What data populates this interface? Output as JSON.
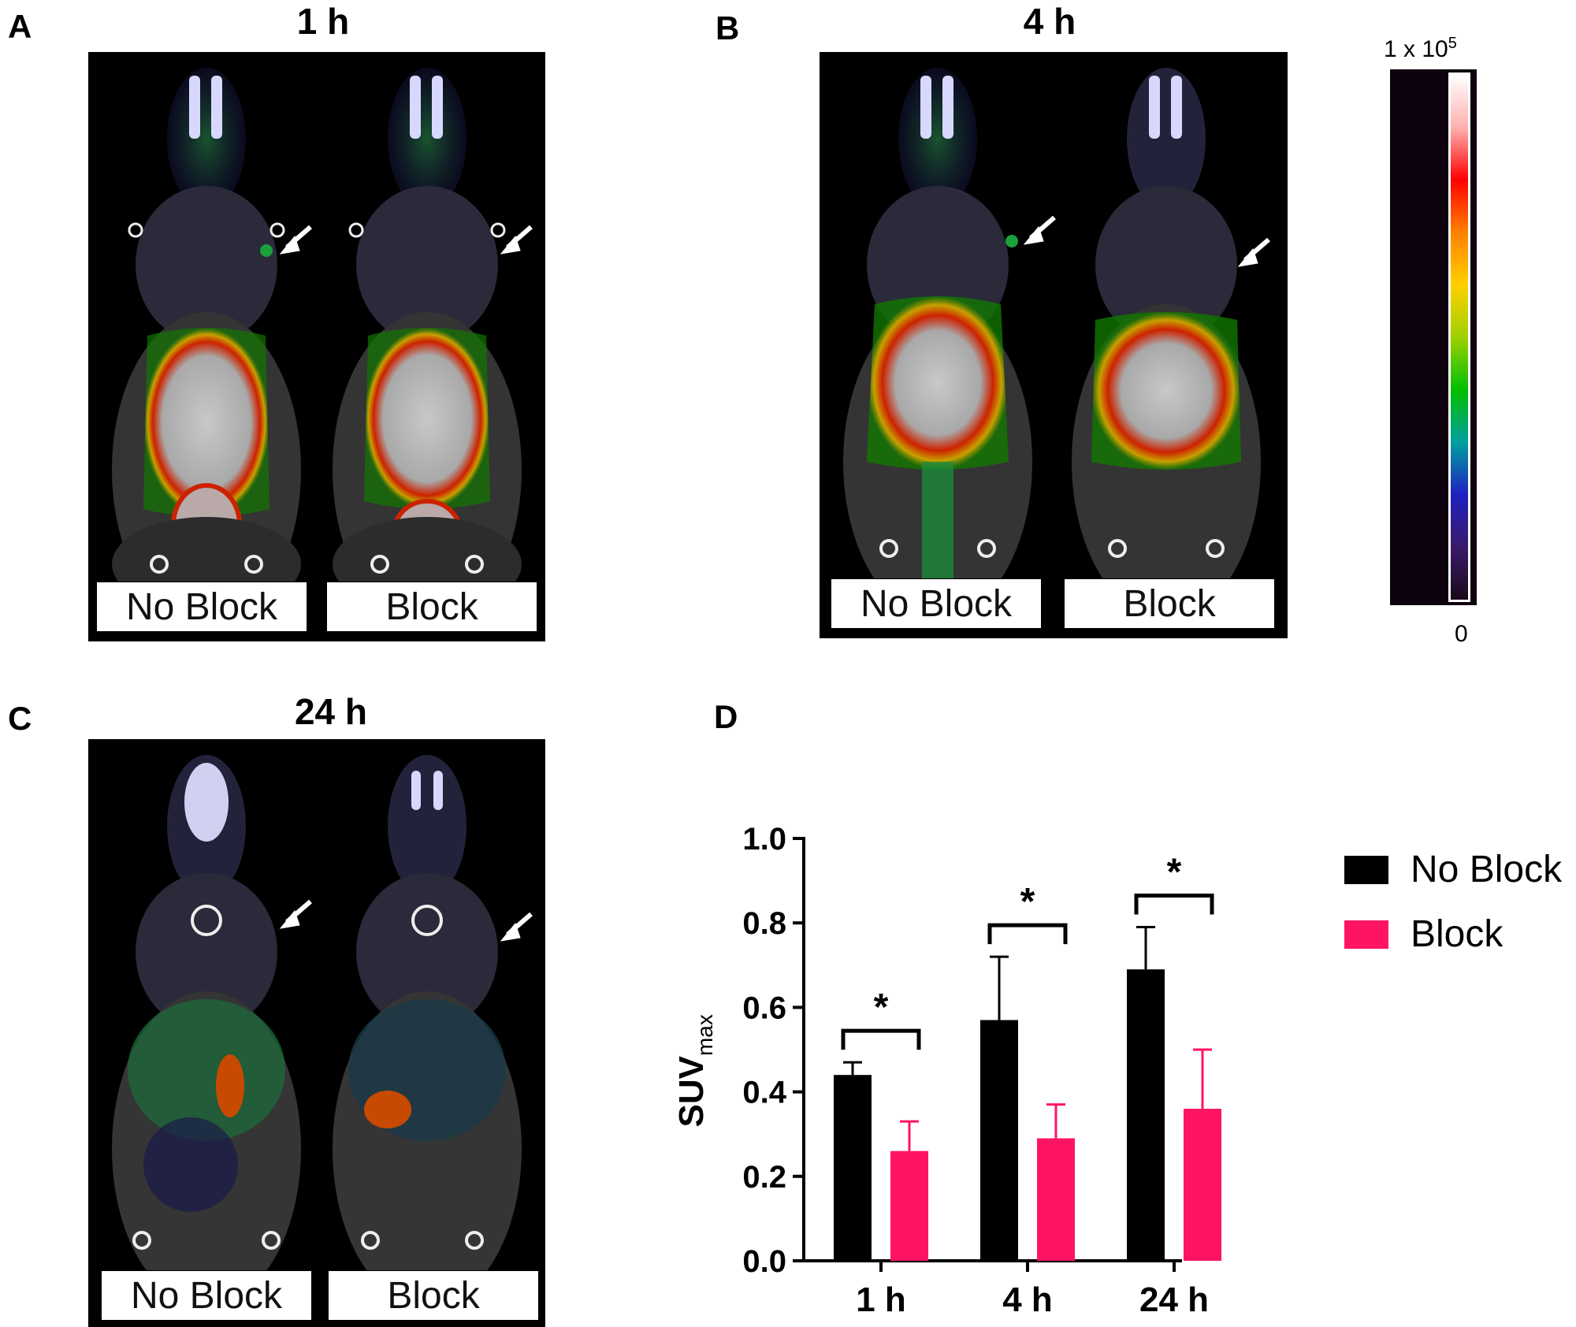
{
  "panels": {
    "A": {
      "letter": "A",
      "title": "1 h",
      "labels": [
        "No Block",
        "Block"
      ]
    },
    "B": {
      "letter": "B",
      "title": "4 h",
      "labels": [
        "No Block",
        "Block"
      ]
    },
    "C": {
      "letter": "C",
      "title": "24 h",
      "labels": [
        "No Block",
        "Block"
      ]
    },
    "D": {
      "letter": "D"
    }
  },
  "colorbar": {
    "max_label": "1 x 10",
    "max_exp": "5",
    "min_label": "0",
    "colors": [
      "#1a0a1a",
      "#3a1a6a",
      "#2020c0",
      "#00a0a0",
      "#00c000",
      "#a0d000",
      "#ffd000",
      "#ff8000",
      "#ff0000",
      "#ffb0b0",
      "#ffffff"
    ]
  },
  "chart_data": {
    "type": "bar",
    "categories": [
      "1 h",
      "4 h",
      "24 h"
    ],
    "ylabel_main": "SUV",
    "ylabel_sub": "max",
    "ylim": [
      0,
      1.0
    ],
    "yticks": [
      "0.0",
      "0.2",
      "0.4",
      "0.6",
      "0.8",
      "1.0"
    ],
    "series": [
      {
        "name": "No Block",
        "color": "#000000",
        "values": [
          0.44,
          0.57,
          0.69
        ],
        "errors": [
          0.03,
          0.15,
          0.1
        ]
      },
      {
        "name": "Block",
        "color": "#ff1464",
        "values": [
          0.26,
          0.29,
          0.36
        ],
        "errors": [
          0.07,
          0.08,
          0.14
        ]
      }
    ],
    "significance": [
      "*",
      "*",
      "*"
    ],
    "legend": "right"
  }
}
